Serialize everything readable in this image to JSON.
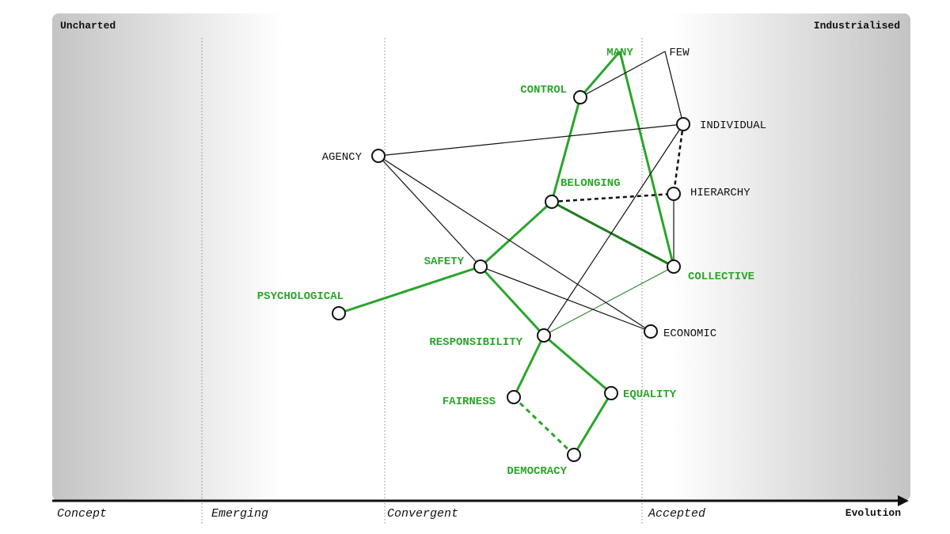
{
  "map": {
    "top_left_label": "Uncharted",
    "top_right_label": "Industrialised",
    "axis_label": "Evolution",
    "stages": [
      "Concept",
      "Emerging",
      "Convergent",
      "Accepted"
    ]
  },
  "colors": {
    "green": "#2aa52a",
    "dark_green": "#1e7d1e",
    "black": "#111111",
    "panel_gray": "#c4c4c4"
  },
  "nodes": [
    {
      "id": "many",
      "label": "MANY",
      "color": "green",
      "has_circle": false
    },
    {
      "id": "few",
      "label": "FEW",
      "color": "black",
      "has_circle": false
    },
    {
      "id": "control",
      "label": "CONTROL",
      "color": "green",
      "has_circle": true
    },
    {
      "id": "individual",
      "label": "INDIVIDUAL",
      "color": "black",
      "has_circle": true
    },
    {
      "id": "agency",
      "label": "AGENCY",
      "color": "black",
      "has_circle": true
    },
    {
      "id": "belonging",
      "label": "BELONGING",
      "color": "green",
      "has_circle": true
    },
    {
      "id": "hierarchy",
      "label": "HIERARCHY",
      "color": "black",
      "has_circle": true
    },
    {
      "id": "safety",
      "label": "SAFETY",
      "color": "green",
      "has_circle": true
    },
    {
      "id": "collective",
      "label": "COLLECTIVE",
      "color": "green",
      "has_circle": true
    },
    {
      "id": "psychological",
      "label": "PSYCHOLOGICAL",
      "color": "green",
      "has_circle": true
    },
    {
      "id": "economic",
      "label": "ECONOMIC",
      "color": "black",
      "has_circle": true
    },
    {
      "id": "responsibility",
      "label": "RESPONSIBILITY",
      "color": "green",
      "has_circle": true
    },
    {
      "id": "fairness",
      "label": "FAIRNESS",
      "color": "green",
      "has_circle": true
    },
    {
      "id": "equality",
      "label": "EQUALITY",
      "color": "green",
      "has_circle": true
    },
    {
      "id": "democracy",
      "label": "DEMOCRACY",
      "color": "green",
      "has_circle": true
    }
  ],
  "links": [
    {
      "from": "many",
      "to": "control",
      "style": "green"
    },
    {
      "from": "many",
      "to": "collective",
      "style": "green"
    },
    {
      "from": "control",
      "to": "belonging",
      "style": "green"
    },
    {
      "from": "belonging",
      "to": "safety",
      "style": "green"
    },
    {
      "from": "belonging",
      "to": "collective",
      "style": "dark-green"
    },
    {
      "from": "safety",
      "to": "psychological",
      "style": "green"
    },
    {
      "from": "safety",
      "to": "responsibility",
      "style": "green"
    },
    {
      "from": "responsibility",
      "to": "fairness",
      "style": "green"
    },
    {
      "from": "responsibility",
      "to": "equality",
      "style": "green"
    },
    {
      "from": "equality",
      "to": "democracy",
      "style": "green"
    },
    {
      "from": "fairness",
      "to": "democracy",
      "style": "green-dashed"
    },
    {
      "from": "responsibility",
      "to": "collective",
      "style": "thin-green"
    },
    {
      "from": "few",
      "to": "control",
      "style": "black"
    },
    {
      "from": "few",
      "to": "individual",
      "style": "black"
    },
    {
      "from": "agency",
      "to": "individual",
      "style": "black"
    },
    {
      "from": "agency",
      "to": "safety",
      "style": "black"
    },
    {
      "from": "agency",
      "to": "economic",
      "style": "black"
    },
    {
      "from": "safety",
      "to": "economic",
      "style": "black"
    },
    {
      "from": "individual",
      "to": "hierarchy",
      "style": "black-dashed"
    },
    {
      "from": "belonging",
      "to": "hierarchy",
      "style": "black-dashed"
    },
    {
      "from": "hierarchy",
      "to": "collective",
      "style": "black"
    },
    {
      "from": "individual",
      "to": "responsibility",
      "style": "black"
    }
  ]
}
